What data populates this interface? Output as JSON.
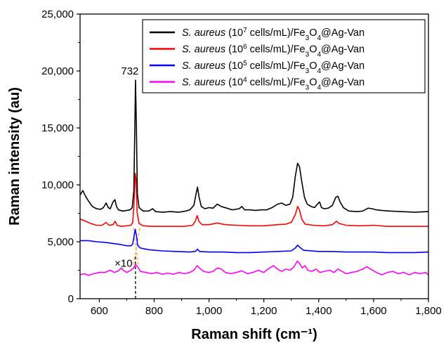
{
  "chart_data": {
    "type": "line",
    "xlabel": "Raman shift (cm⁻¹)",
    "ylabel": "Raman intensity (au)",
    "xlim": [
      530,
      1800
    ],
    "ylim": [
      0,
      25000
    ],
    "x_ticks": [
      600,
      800,
      1000,
      1200,
      1400,
      1600,
      1800
    ],
    "x_tick_labels": [
      "600",
      "800",
      "1,000",
      "1,200",
      "1,400",
      "1,600",
      "1,800"
    ],
    "y_ticks": [
      0,
      5000,
      10000,
      15000,
      20000,
      25000
    ],
    "y_tick_labels": [
      "0",
      "5,000",
      "10,000",
      "15,000",
      "20,000",
      "25,000"
    ],
    "grid": false,
    "legend_position": "top-right",
    "annotations": {
      "peak_label": "732",
      "scale_label": "×10",
      "peak_x": 732
    },
    "series": [
      {
        "name": "S. aureus (10^7 cells/mL)/Fe3O4@Ag-Van",
        "legend": {
          "species": "S. aureus",
          "pre": " (10",
          "sup": "7",
          "mid": " cells/mL)/Fe",
          "sub1": "3",
          "o": "O",
          "sub2": "4",
          "post": "@Ag-Van"
        },
        "color": "#000000",
        "points": [
          [
            530,
            9100
          ],
          [
            540,
            9500
          ],
          [
            550,
            9000
          ],
          [
            560,
            8600
          ],
          [
            575,
            8100
          ],
          [
            590,
            7900
          ],
          [
            605,
            7850
          ],
          [
            615,
            8000
          ],
          [
            625,
            8400
          ],
          [
            633,
            8000
          ],
          [
            640,
            7900
          ],
          [
            650,
            8500
          ],
          [
            657,
            8700
          ],
          [
            663,
            8100
          ],
          [
            670,
            7800
          ],
          [
            685,
            7700
          ],
          [
            700,
            7750
          ],
          [
            712,
            7800
          ],
          [
            720,
            8000
          ],
          [
            726,
            9500
          ],
          [
            730,
            15500
          ],
          [
            732,
            19200
          ],
          [
            735,
            15500
          ],
          [
            739,
            9200
          ],
          [
            745,
            8000
          ],
          [
            760,
            7700
          ],
          [
            780,
            7700
          ],
          [
            795,
            7900
          ],
          [
            805,
            7650
          ],
          [
            830,
            7600
          ],
          [
            860,
            7650
          ],
          [
            890,
            7600
          ],
          [
            915,
            7700
          ],
          [
            930,
            7800
          ],
          [
            945,
            8200
          ],
          [
            952,
            9100
          ],
          [
            958,
            9800
          ],
          [
            964,
            8900
          ],
          [
            972,
            8100
          ],
          [
            985,
            7900
          ],
          [
            1000,
            8000
          ],
          [
            1015,
            7950
          ],
          [
            1030,
            8300
          ],
          [
            1045,
            8100
          ],
          [
            1065,
            7950
          ],
          [
            1085,
            7800
          ],
          [
            1110,
            7900
          ],
          [
            1120,
            8100
          ],
          [
            1130,
            7800
          ],
          [
            1150,
            7800
          ],
          [
            1170,
            7750
          ],
          [
            1190,
            7800
          ],
          [
            1210,
            7800
          ],
          [
            1230,
            8000
          ],
          [
            1250,
            8300
          ],
          [
            1265,
            8400
          ],
          [
            1280,
            8200
          ],
          [
            1295,
            8300
          ],
          [
            1305,
            8900
          ],
          [
            1315,
            10800
          ],
          [
            1323,
            11900
          ],
          [
            1330,
            11600
          ],
          [
            1338,
            10300
          ],
          [
            1348,
            8900
          ],
          [
            1358,
            8300
          ],
          [
            1372,
            8100
          ],
          [
            1385,
            8000
          ],
          [
            1395,
            8300
          ],
          [
            1403,
            8500
          ],
          [
            1410,
            8000
          ],
          [
            1420,
            7900
          ],
          [
            1435,
            7950
          ],
          [
            1450,
            8200
          ],
          [
            1462,
            8900
          ],
          [
            1470,
            9000
          ],
          [
            1478,
            8500
          ],
          [
            1490,
            8000
          ],
          [
            1510,
            7700
          ],
          [
            1540,
            7650
          ],
          [
            1560,
            7700
          ],
          [
            1580,
            7950
          ],
          [
            1595,
            7900
          ],
          [
            1610,
            7800
          ],
          [
            1630,
            7750
          ],
          [
            1660,
            7700
          ],
          [
            1700,
            7650
          ],
          [
            1750,
            7600
          ],
          [
            1800,
            7650
          ]
        ]
      },
      {
        "name": "S. aureus (10^6 cells/mL)/Fe3O4@Ag-Van",
        "legend": {
          "species": "S. aureus",
          "pre": " (10",
          "sup": "6",
          "mid": " cells/mL)/Fe",
          "sub1": "3",
          "o": "O",
          "sub2": "4",
          "post": "@Ag-Van"
        },
        "color": "#ff0000",
        "points": [
          [
            530,
            7000
          ],
          [
            550,
            6800
          ],
          [
            570,
            6600
          ],
          [
            590,
            6450
          ],
          [
            610,
            6450
          ],
          [
            625,
            6700
          ],
          [
            635,
            6450
          ],
          [
            650,
            6500
          ],
          [
            658,
            6800
          ],
          [
            665,
            6450
          ],
          [
            680,
            6350
          ],
          [
            700,
            6400
          ],
          [
            715,
            6450
          ],
          [
            722,
            6700
          ],
          [
            727,
            8500
          ],
          [
            731,
            11000
          ],
          [
            734,
            10500
          ],
          [
            738,
            7600
          ],
          [
            745,
            6600
          ],
          [
            760,
            6400
          ],
          [
            790,
            6350
          ],
          [
            830,
            6350
          ],
          [
            870,
            6350
          ],
          [
            910,
            6350
          ],
          [
            940,
            6450
          ],
          [
            950,
            6800
          ],
          [
            957,
            7300
          ],
          [
            963,
            6800
          ],
          [
            975,
            6500
          ],
          [
            1000,
            6500
          ],
          [
            1030,
            6650
          ],
          [
            1060,
            6500
          ],
          [
            1100,
            6450
          ],
          [
            1150,
            6400
          ],
          [
            1200,
            6400
          ],
          [
            1250,
            6500
          ],
          [
            1280,
            6550
          ],
          [
            1300,
            6700
          ],
          [
            1315,
            7400
          ],
          [
            1323,
            8100
          ],
          [
            1330,
            7800
          ],
          [
            1338,
            7000
          ],
          [
            1350,
            6550
          ],
          [
            1380,
            6450
          ],
          [
            1420,
            6400
          ],
          [
            1450,
            6500
          ],
          [
            1465,
            6800
          ],
          [
            1475,
            6600
          ],
          [
            1500,
            6450
          ],
          [
            1550,
            6400
          ],
          [
            1600,
            6450
          ],
          [
            1650,
            6350
          ],
          [
            1700,
            6350
          ],
          [
            1750,
            6350
          ],
          [
            1800,
            6350
          ]
        ]
      },
      {
        "name": "S. aureus (10^5 cells/mL)/Fe3O4@Ag-Van",
        "legend": {
          "species": "S. aureus",
          "pre": " (10",
          "sup": "5",
          "mid": " cells/mL)/Fe",
          "sub1": "3",
          "o": "O",
          "sub2": "4",
          "post": "@Ag-Van"
        },
        "color": "#0000ff",
        "points": [
          [
            530,
            5100
          ],
          [
            560,
            5100
          ],
          [
            590,
            5000
          ],
          [
            620,
            4950
          ],
          [
            650,
            4850
          ],
          [
            680,
            4750
          ],
          [
            700,
            4650
          ],
          [
            715,
            4650
          ],
          [
            722,
            4800
          ],
          [
            727,
            5500
          ],
          [
            731,
            6100
          ],
          [
            735,
            5600
          ],
          [
            740,
            4700
          ],
          [
            750,
            4450
          ],
          [
            780,
            4300
          ],
          [
            830,
            4200
          ],
          [
            880,
            4150
          ],
          [
            930,
            4100
          ],
          [
            950,
            4150
          ],
          [
            958,
            4350
          ],
          [
            965,
            4150
          ],
          [
            1000,
            4100
          ],
          [
            1050,
            4100
          ],
          [
            1100,
            4050
          ],
          [
            1150,
            4050
          ],
          [
            1200,
            4100
          ],
          [
            1250,
            4150
          ],
          [
            1300,
            4200
          ],
          [
            1315,
            4450
          ],
          [
            1323,
            4700
          ],
          [
            1332,
            4500
          ],
          [
            1345,
            4250
          ],
          [
            1400,
            4150
          ],
          [
            1450,
            4150
          ],
          [
            1500,
            4100
          ],
          [
            1550,
            4100
          ],
          [
            1600,
            4100
          ],
          [
            1650,
            4050
          ],
          [
            1700,
            4050
          ],
          [
            1750,
            4050
          ],
          [
            1800,
            4100
          ]
        ]
      },
      {
        "name": "S. aureus (10^4 cells/mL)/Fe3O4@Ag-Van",
        "legend": {
          "species": "S. aureus",
          "pre": " (10",
          "sup": "4",
          "mid": " cells/mL)/Fe",
          "sub1": "3",
          "o": "O",
          "sub2": "4",
          "post": "@Ag-Van"
        },
        "color": "#ff00ff",
        "points": [
          [
            530,
            2100
          ],
          [
            545,
            2200
          ],
          [
            560,
            2050
          ],
          [
            580,
            2200
          ],
          [
            600,
            2300
          ],
          [
            620,
            2300
          ],
          [
            640,
            2500
          ],
          [
            655,
            2300
          ],
          [
            670,
            2450
          ],
          [
            680,
            2700
          ],
          [
            690,
            2450
          ],
          [
            700,
            2300
          ],
          [
            715,
            2500
          ],
          [
            725,
            2700
          ],
          [
            732,
            3000
          ],
          [
            740,
            2800
          ],
          [
            750,
            2400
          ],
          [
            770,
            2300
          ],
          [
            790,
            2200
          ],
          [
            810,
            2300
          ],
          [
            830,
            2150
          ],
          [
            850,
            2250
          ],
          [
            870,
            2150
          ],
          [
            890,
            2300
          ],
          [
            910,
            2200
          ],
          [
            930,
            2300
          ],
          [
            945,
            2500
          ],
          [
            957,
            2900
          ],
          [
            965,
            2700
          ],
          [
            980,
            2400
          ],
          [
            1000,
            2300
          ],
          [
            1015,
            2400
          ],
          [
            1030,
            2700
          ],
          [
            1045,
            2600
          ],
          [
            1060,
            2300
          ],
          [
            1080,
            2200
          ],
          [
            1100,
            2300
          ],
          [
            1120,
            2450
          ],
          [
            1140,
            2200
          ],
          [
            1160,
            2300
          ],
          [
            1180,
            2500
          ],
          [
            1200,
            2300
          ],
          [
            1215,
            2600
          ],
          [
            1235,
            2900
          ],
          [
            1250,
            2600
          ],
          [
            1265,
            2400
          ],
          [
            1280,
            2600
          ],
          [
            1295,
            2500
          ],
          [
            1310,
            2800
          ],
          [
            1322,
            3300
          ],
          [
            1330,
            3100
          ],
          [
            1340,
            2700
          ],
          [
            1350,
            2900
          ],
          [
            1360,
            2500
          ],
          [
            1375,
            2400
          ],
          [
            1390,
            2600
          ],
          [
            1405,
            2300
          ],
          [
            1420,
            2400
          ],
          [
            1440,
            2500
          ],
          [
            1455,
            2300
          ],
          [
            1470,
            2600
          ],
          [
            1485,
            2400
          ],
          [
            1500,
            2200
          ],
          [
            1520,
            2300
          ],
          [
            1540,
            2400
          ],
          [
            1560,
            2600
          ],
          [
            1575,
            2800
          ],
          [
            1590,
            2600
          ],
          [
            1610,
            2300
          ],
          [
            1630,
            2100
          ],
          [
            1650,
            2300
          ],
          [
            1670,
            2400
          ],
          [
            1690,
            2200
          ],
          [
            1710,
            2300
          ],
          [
            1730,
            2100
          ],
          [
            1750,
            2300
          ],
          [
            1770,
            2200
          ],
          [
            1790,
            2300
          ],
          [
            1800,
            2100
          ]
        ]
      }
    ]
  }
}
